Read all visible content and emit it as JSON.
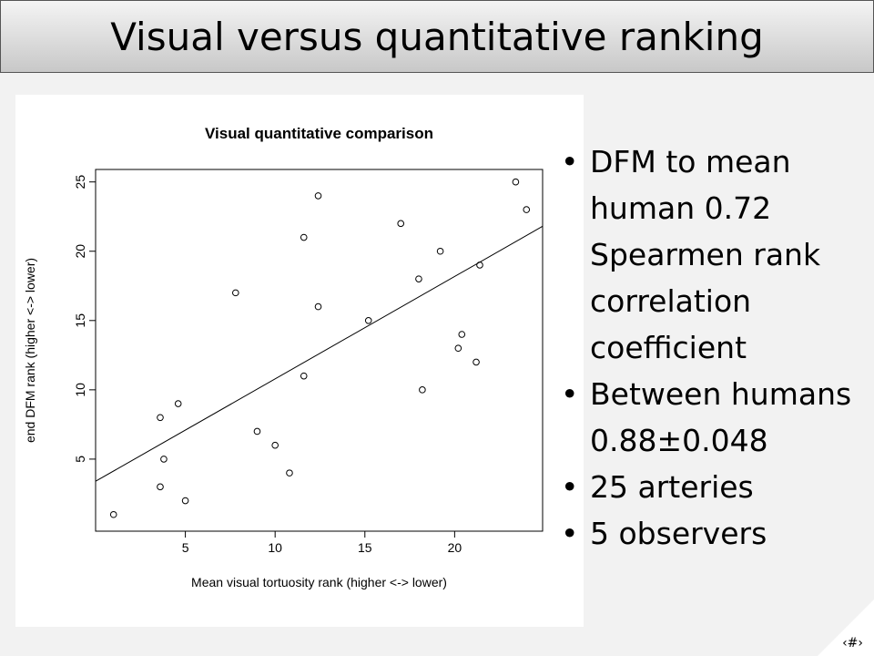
{
  "slide": {
    "title": "Visual versus quantitative ranking",
    "slide_number": "‹#›"
  },
  "bullets": [
    "DFM to mean human 0.72 Spearmen rank correlation coefficient",
    "Between humans 0.88±0.048",
    "25 arteries",
    "5 observers"
  ],
  "chart_data": {
    "type": "scatter",
    "title": "Visual quantitative comparison",
    "xlabel": "Mean visual tortuosity rank (higher <-> lower)",
    "ylabel": "end DFM rank (higher <-> lower)",
    "xlim": [
      0,
      24.9
    ],
    "ylim": [
      -0.2,
      25.9
    ],
    "xticks": [
      5,
      10,
      15,
      20
    ],
    "yticks": [
      5,
      10,
      15,
      20,
      25
    ],
    "grid": false,
    "points": [
      {
        "x": 1.0,
        "y": 1
      },
      {
        "x": 3.6,
        "y": 8
      },
      {
        "x": 3.6,
        "y": 3
      },
      {
        "x": 3.8,
        "y": 5
      },
      {
        "x": 4.6,
        "y": 9
      },
      {
        "x": 5.0,
        "y": 2
      },
      {
        "x": 7.8,
        "y": 17
      },
      {
        "x": 9.0,
        "y": 7
      },
      {
        "x": 10.0,
        "y": 6
      },
      {
        "x": 10.8,
        "y": 4
      },
      {
        "x": 11.6,
        "y": 21
      },
      {
        "x": 11.6,
        "y": 11
      },
      {
        "x": 12.4,
        "y": 24
      },
      {
        "x": 12.4,
        "y": 16
      },
      {
        "x": 15.2,
        "y": 15
      },
      {
        "x": 17.0,
        "y": 22
      },
      {
        "x": 18.0,
        "y": 18
      },
      {
        "x": 18.2,
        "y": 10
      },
      {
        "x": 19.2,
        "y": 20
      },
      {
        "x": 20.2,
        "y": 13
      },
      {
        "x": 20.4,
        "y": 14
      },
      {
        "x": 21.2,
        "y": 12
      },
      {
        "x": 21.4,
        "y": 19
      },
      {
        "x": 23.4,
        "y": 25
      },
      {
        "x": 24.0,
        "y": 23
      }
    ],
    "fit_line": {
      "x": [
        0,
        24.9
      ],
      "y": [
        3.4,
        21.8
      ]
    }
  }
}
